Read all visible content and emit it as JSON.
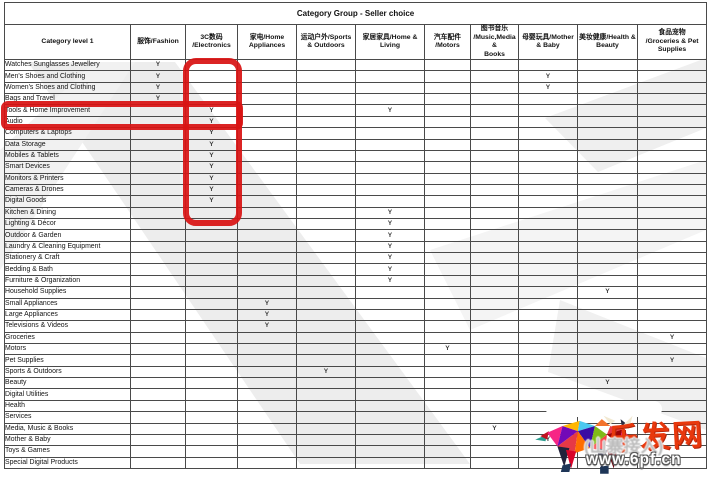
{
  "title": "Category Group - Seller choice",
  "mark_symbol": "Y",
  "columns": [
    {
      "key": "category",
      "lines": [
        "Category level 1"
      ]
    },
    {
      "key": "fashion",
      "lines": [
        "服饰/Fashion"
      ]
    },
    {
      "key": "electronics",
      "lines": [
        "3C数码",
        "/Electronics"
      ]
    },
    {
      "key": "home_appliances",
      "lines": [
        "家电/Home",
        "Appliances"
      ]
    },
    {
      "key": "sports_outdoors",
      "lines": [
        "运动户外/Sports",
        "& Outdoors"
      ]
    },
    {
      "key": "home_living",
      "lines": [
        "家居家具/Home &",
        "Living"
      ]
    },
    {
      "key": "motors",
      "lines": [
        "汽车配件",
        "/Motors"
      ]
    },
    {
      "key": "music_media_books",
      "lines": [
        "图书音乐",
        "/Music,Media &",
        "Books"
      ]
    },
    {
      "key": "mother_baby",
      "lines": [
        "母婴玩具/Mother",
        "& Baby"
      ]
    },
    {
      "key": "health_beauty",
      "lines": [
        "美妆健康/Health &",
        "Beauty"
      ]
    },
    {
      "key": "groceries_pet",
      "lines": [
        "食品宠物",
        "/Groceries & Pet",
        "Supplies"
      ]
    }
  ],
  "rows": [
    {
      "name": "Watches Sunglasses Jewellery",
      "marks": [
        "fashion"
      ]
    },
    {
      "name": "Men's Shoes and Clothing",
      "marks": [
        "fashion",
        "mother_baby"
      ]
    },
    {
      "name": "Women's Shoes and Clothing",
      "marks": [
        "fashion",
        "mother_baby"
      ]
    },
    {
      "name": "Bags and Travel",
      "marks": [
        "fashion"
      ]
    },
    {
      "name": "Tools & Home Improvement",
      "marks": [
        "electronics",
        "home_living"
      ]
    },
    {
      "name": "Audio",
      "marks": [
        "electronics"
      ]
    },
    {
      "name": "Computers & Laptops",
      "marks": [
        "electronics"
      ]
    },
    {
      "name": "Data Storage",
      "marks": [
        "electronics"
      ]
    },
    {
      "name": "Mobiles & Tablets",
      "marks": [
        "electronics"
      ]
    },
    {
      "name": "Smart Devices",
      "marks": [
        "electronics"
      ]
    },
    {
      "name": "Monitors & Printers",
      "marks": [
        "electronics"
      ]
    },
    {
      "name": "Cameras & Drones",
      "marks": [
        "electronics"
      ]
    },
    {
      "name": "Digital Goods",
      "marks": [
        "electronics"
      ]
    },
    {
      "name": "Kitchen & Dining",
      "marks": [
        "home_living"
      ]
    },
    {
      "name": "Lighting & Décor",
      "marks": [
        "home_living"
      ]
    },
    {
      "name": "Outdoor & Garden",
      "marks": [
        "home_living"
      ]
    },
    {
      "name": "Laundry & Cleaning Equipment",
      "marks": [
        "home_living"
      ]
    },
    {
      "name": "Stationery & Craft",
      "marks": [
        "home_living"
      ]
    },
    {
      "name": "Bedding & Bath",
      "marks": [
        "home_living"
      ]
    },
    {
      "name": "Furniture & Organization",
      "marks": [
        "home_living"
      ]
    },
    {
      "name": "Household Supplies",
      "marks": [
        "health_beauty"
      ]
    },
    {
      "name": "Small Appliances",
      "marks": [
        "home_appliances"
      ]
    },
    {
      "name": "Large Appliances",
      "marks": [
        "home_appliances"
      ]
    },
    {
      "name": "Televisions & Videos",
      "marks": [
        "home_appliances"
      ]
    },
    {
      "name": "Groceries",
      "marks": [
        "groceries_pet"
      ]
    },
    {
      "name": "Motors",
      "marks": [
        "motors"
      ]
    },
    {
      "name": "Pet Supplies",
      "marks": [
        "groceries_pet"
      ]
    },
    {
      "name": "Sports & Outdoors",
      "marks": [
        "sports_outdoors"
      ]
    },
    {
      "name": "Beauty",
      "marks": [
        "health_beauty"
      ]
    },
    {
      "name": "Digital Utilities",
      "marks": []
    },
    {
      "name": "Health",
      "marks": [
        "health_beauty"
      ]
    },
    {
      "name": "Services",
      "marks": []
    },
    {
      "name": "Media, Music & Books",
      "marks": [
        "music_media_books"
      ]
    },
    {
      "name": "Mother & Baby",
      "marks": [
        "mother_baby"
      ]
    },
    {
      "name": "Toys & Games",
      "marks": []
    },
    {
      "name": "Special Digital Products",
      "marks": []
    }
  ],
  "highlight": {
    "color": "#d81313"
  },
  "watermark": {
    "site_name": "乐发网",
    "subtext": "(山寨接入)",
    "url": "www.6pf.cn"
  }
}
